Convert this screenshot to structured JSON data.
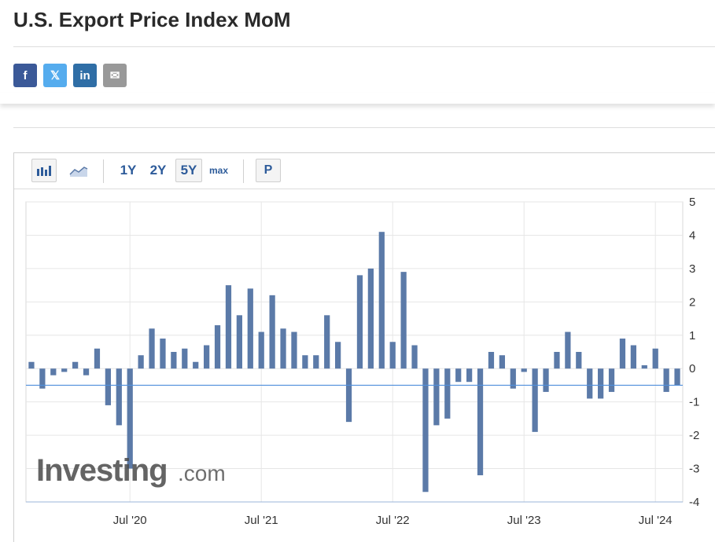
{
  "page": {
    "title": "U.S. Export Price Index MoM"
  },
  "share": [
    {
      "name": "facebook-share-button",
      "icon": "facebook-icon",
      "glyph": "f",
      "color": "#3b5998"
    },
    {
      "name": "x-share-button",
      "icon": "x-icon",
      "glyph": "𝕏",
      "color": "#55acee"
    },
    {
      "name": "linkedin-share-button",
      "icon": "linkedin-icon",
      "glyph": "in",
      "color": "#2f6ea6"
    },
    {
      "name": "email-share-button",
      "icon": "mail-icon",
      "glyph": "✉",
      "color": "#999999"
    }
  ],
  "toolbar": {
    "ranges": [
      "1Y",
      "2Y",
      "5Y",
      "max"
    ],
    "active_range": "5Y",
    "p_label": "P"
  },
  "watermark": "Investing.com",
  "chart_data": {
    "type": "bar",
    "title": "",
    "xlabel": "",
    "ylabel": "",
    "ylim": [
      -4,
      5
    ],
    "yticks": [
      5,
      4,
      3,
      2,
      1,
      0,
      -1,
      -2,
      -3,
      -4
    ],
    "x_tick_labels": [
      "Jul '20",
      "Jul '21",
      "Jul '22",
      "Jul '23",
      "Jul '24"
    ],
    "bar_color": "#5b7aa8",
    "reference_line": {
      "value": -0.5,
      "color": "#4f8fdc"
    },
    "grid": true,
    "y_axis_side": "right",
    "series": [
      {
        "values": [
          0.2,
          -0.6,
          -0.2,
          -0.1,
          0.2,
          -0.2,
          0.6,
          -1.1,
          -1.7,
          -3.0,
          0.4,
          1.2,
          0.9,
          0.5,
          0.6,
          0.2,
          0.7,
          1.3,
          2.5,
          1.6,
          2.4,
          1.1,
          2.2,
          1.2,
          1.1,
          0.4,
          0.4,
          1.6,
          0.8,
          -1.6,
          2.8,
          3.0,
          4.1,
          0.8,
          2.9,
          0.7,
          -3.7,
          -1.7,
          -1.5,
          -0.4,
          -0.4,
          -3.2,
          0.5,
          0.4,
          -0.6,
          -0.1,
          -1.9,
          -0.7,
          0.5,
          1.1,
          0.5,
          -0.9,
          -0.9,
          -0.7,
          0.9,
          0.7,
          0.1,
          0.6,
          -0.7,
          -0.5
        ]
      }
    ]
  }
}
